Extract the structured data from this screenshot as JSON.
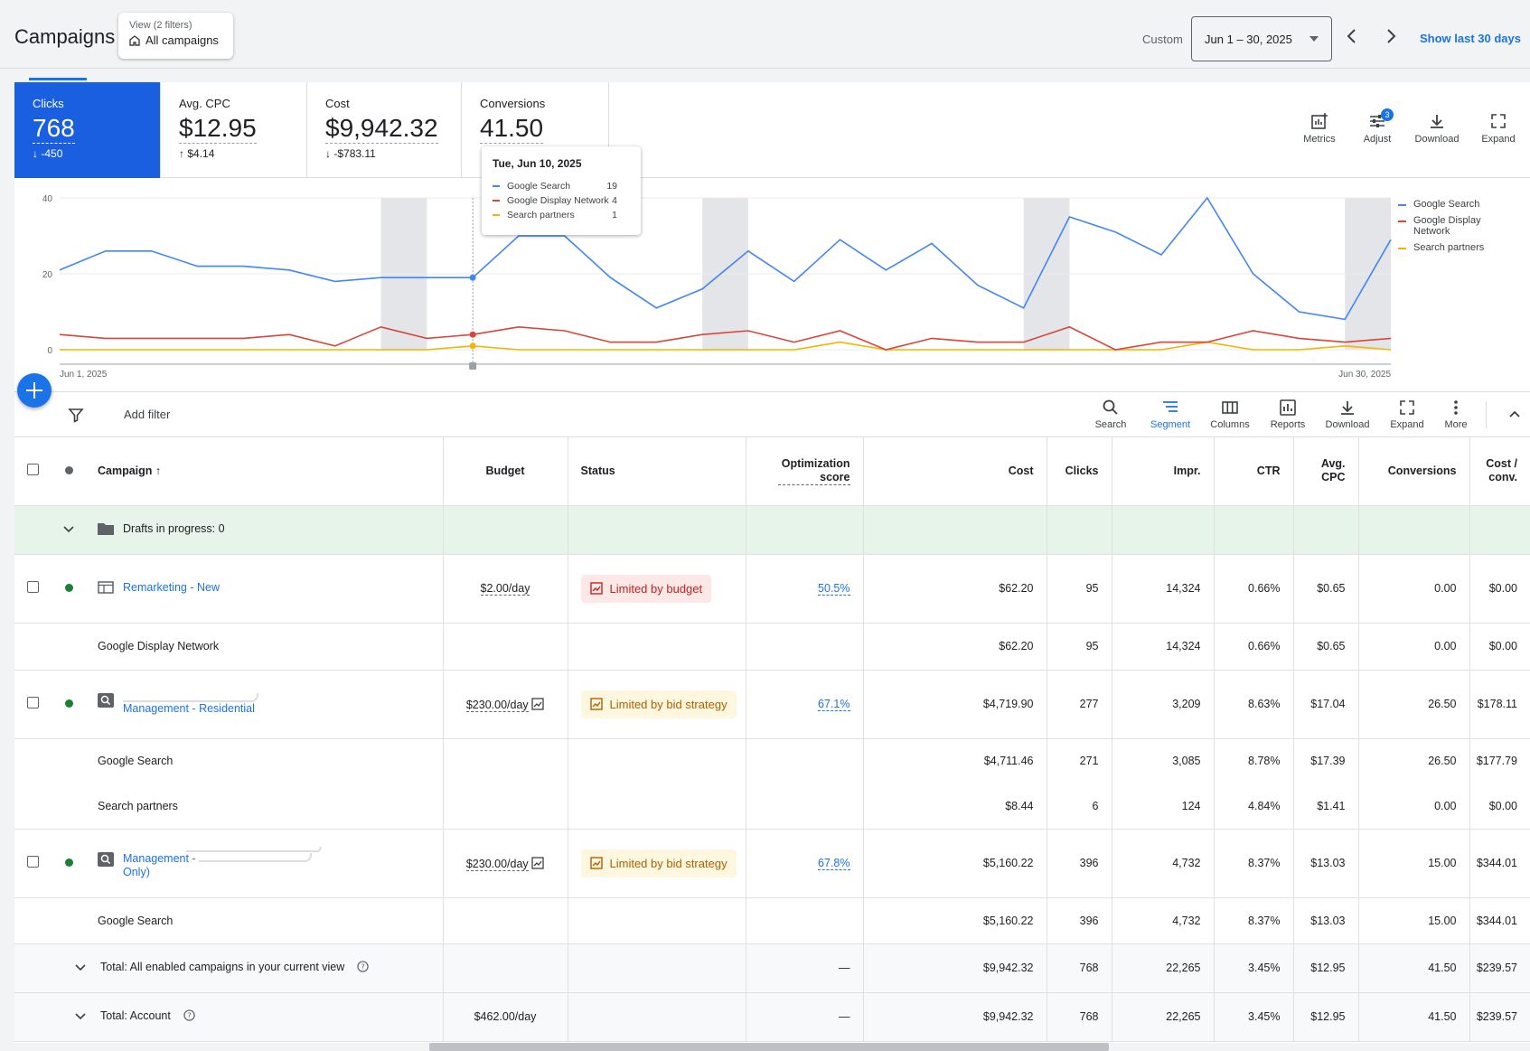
{
  "header": {
    "title": "Campaigns",
    "view_small": "View (2 filters)",
    "view_main": "All campaigns",
    "custom_label": "Custom",
    "date_range": "Jun 1 – 30, 2025",
    "show_last": "Show last 30 days"
  },
  "metrics": [
    {
      "label": "Clicks",
      "value": "768",
      "delta": "-450",
      "dir": "down"
    },
    {
      "label": "Avg. CPC",
      "value": "$12.95",
      "delta": "$4.14",
      "dir": "up"
    },
    {
      "label": "Cost",
      "value": "$9,942.32",
      "delta": "-$783.11",
      "dir": "down"
    },
    {
      "label": "Conversions",
      "value": "41.50",
      "delta": "",
      "dir": ""
    }
  ],
  "metric_tools": [
    "Metrics",
    "Adjust",
    "Download",
    "Expand"
  ],
  "adjust_badge": "3",
  "tooltip": {
    "title": "Tue, Jun 10, 2025",
    "rows": [
      {
        "name": "Google Search",
        "value": "19",
        "color": "#4285f4"
      },
      {
        "name": "Google Display Network",
        "value": "4",
        "color": "#db4437"
      },
      {
        "name": "Search partners",
        "value": "1",
        "color": "#f4b400"
      }
    ]
  },
  "chart_data": {
    "type": "line",
    "x_start_label": "Jun 1, 2025",
    "x_end_label": "Jun 30, 2025",
    "y_ticks": [
      "40",
      "20",
      "0"
    ],
    "ylim": [
      0,
      40
    ],
    "weekend_bands": [
      [
        7,
        8
      ],
      [
        14,
        15
      ],
      [
        21,
        22
      ],
      [
        28,
        29
      ]
    ],
    "hover_index": 9,
    "series": [
      {
        "name": "Google Search",
        "color": "#4285f4",
        "values": [
          21,
          26,
          26,
          22,
          22,
          21,
          18,
          19,
          19,
          19,
          30,
          30,
          19,
          11,
          16,
          26,
          18,
          29,
          21,
          28,
          17,
          11,
          35,
          31,
          25,
          40,
          20,
          10,
          8,
          29
        ]
      },
      {
        "name": "Google Display Network",
        "color": "#db4437",
        "values": [
          4,
          3,
          3,
          3,
          3,
          4,
          1,
          6,
          3,
          4,
          6,
          5,
          2,
          2,
          4,
          5,
          2,
          5,
          0,
          3,
          2,
          2,
          6,
          0,
          2,
          2,
          5,
          3,
          2,
          3
        ]
      },
      {
        "name": "Search partners",
        "color": "#f4b400",
        "values": [
          0,
          0,
          0,
          0,
          0,
          0,
          0,
          0,
          0,
          1,
          0,
          0,
          0,
          0,
          0,
          0,
          0,
          2,
          0,
          0,
          0,
          0,
          0,
          0,
          0,
          2,
          0,
          0,
          1,
          0
        ]
      }
    ],
    "legend": [
      "Google Search",
      "Google Display Network",
      "Search partners"
    ]
  },
  "filter_bar": {
    "add_filter": "Add filter",
    "tools": [
      "Search",
      "Segment",
      "Columns",
      "Reports",
      "Download",
      "Expand",
      "More"
    ]
  },
  "table": {
    "columns": [
      "Campaign",
      "Budget",
      "Status",
      "Optimization score",
      "Cost",
      "Clicks",
      "Impr.",
      "CTR",
      "Avg. CPC",
      "Conversions",
      "Cost / conv."
    ],
    "drafts": "Drafts in progress: 0",
    "rows": [
      {
        "type": "campaign",
        "name": "Remarketing - New",
        "budget": "$2.00/day",
        "status": "Limited by budget",
        "status_kind": "red",
        "score": "50.5%",
        "cost": "$62.20",
        "clicks": "95",
        "impr": "14,324",
        "ctr": "0.66%",
        "cpc": "$0.65",
        "conv": "0.00",
        "cpconv": "$0.00"
      },
      {
        "type": "segment",
        "name": "Google Display Network",
        "cost": "$62.20",
        "clicks": "95",
        "impr": "14,324",
        "ctr": "0.66%",
        "cpc": "$0.65",
        "conv": "0.00",
        "cpconv": "$0.00"
      },
      {
        "type": "campaign",
        "name": "Management - Residential",
        "budget": "$230.00/day",
        "status": "Limited by bid strategy",
        "status_kind": "amber",
        "score": "67.1%",
        "cost": "$4,719.90",
        "clicks": "277",
        "impr": "3,209",
        "ctr": "8.63%",
        "cpc": "$17.04",
        "conv": "26.50",
        "cpconv": "$178.11"
      },
      {
        "type": "segment",
        "name": "Google Search",
        "cost": "$4,711.46",
        "clicks": "271",
        "impr": "3,085",
        "ctr": "8.78%",
        "cpc": "$17.39",
        "conv": "26.50",
        "cpconv": "$177.79"
      },
      {
        "type": "segment",
        "name": "Search partners",
        "cost": "$8.44",
        "clicks": "6",
        "impr": "124",
        "ctr": "4.84%",
        "cpc": "$1.41",
        "conv": "0.00",
        "cpconv": "$0.00"
      },
      {
        "type": "campaign",
        "name": "Management -",
        "name2": "Only)",
        "budget": "$230.00/day",
        "status": "Limited by bid strategy",
        "status_kind": "amber",
        "score": "67.8%",
        "cost": "$5,160.22",
        "clicks": "396",
        "impr": "4,732",
        "ctr": "8.37%",
        "cpc": "$13.03",
        "conv": "15.00",
        "cpconv": "$344.01"
      },
      {
        "type": "segment",
        "name": "Google Search",
        "cost": "$5,160.22",
        "clicks": "396",
        "impr": "4,732",
        "ctr": "8.37%",
        "cpc": "$13.03",
        "conv": "15.00",
        "cpconv": "$344.01"
      }
    ],
    "totals": [
      {
        "name": "Total: All enabled campaigns in your current view",
        "budget": "",
        "score": "—",
        "cost": "$9,942.32",
        "clicks": "768",
        "impr": "22,265",
        "ctr": "3.45%",
        "cpc": "$12.95",
        "conv": "41.50",
        "cpconv": "$239.57"
      },
      {
        "name": "Total: Account",
        "budget": "$462.00/day",
        "score": "—",
        "cost": "$9,942.32",
        "clicks": "768",
        "impr": "22,265",
        "ctr": "3.45%",
        "cpc": "$12.95",
        "conv": "41.50",
        "cpconv": "$239.57"
      }
    ]
  }
}
